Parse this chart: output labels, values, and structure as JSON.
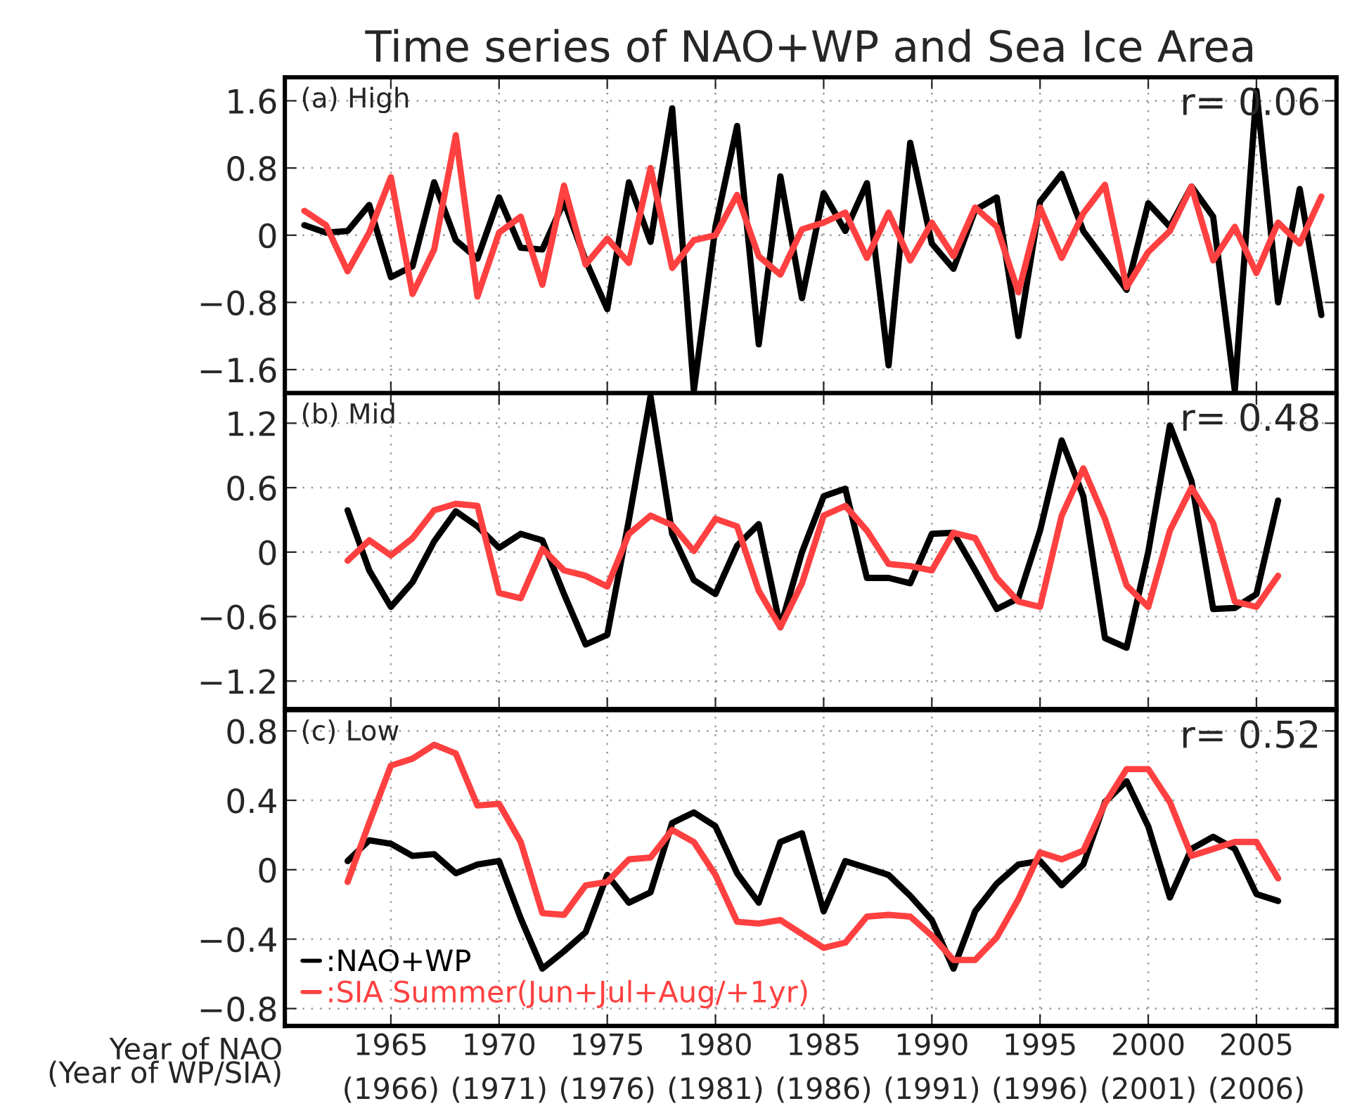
{
  "chart_data": [
    {
      "type": "line",
      "title": "Time series of NAO+WP and Sea Ice Area",
      "annotations": [
        "(a) High",
        "r= 0.06"
      ],
      "x": [
        1961,
        1962,
        1963,
        1964,
        1965,
        1966,
        1967,
        1968,
        1969,
        1970,
        1971,
        1972,
        1973,
        1974,
        1975,
        1976,
        1977,
        1978,
        1979,
        1980,
        1981,
        1982,
        1983,
        1984,
        1985,
        1986,
        1987,
        1988,
        1989,
        1990,
        1991,
        1992,
        1993,
        1994,
        1995,
        1996,
        1997,
        1998,
        1999,
        2000,
        2001,
        2002,
        2003,
        2004,
        2005,
        2006,
        2007,
        2008
      ],
      "series": [
        {
          "color": "#000000",
          "values": [
            0.12,
            0.03,
            0.05,
            0.36,
            -0.5,
            -0.37,
            0.63,
            -0.06,
            -0.28,
            0.45,
            -0.15,
            -0.17,
            0.4,
            -0.3,
            -0.88,
            0.63,
            -0.08,
            1.51,
            -1.85,
            0.1,
            1.3,
            -1.3,
            0.7,
            -0.75,
            0.5,
            0.05,
            0.62,
            -1.55,
            1.1,
            -0.1,
            -0.4,
            0.3,
            0.45,
            -1.2,
            0.4,
            0.73,
            0.05,
            -0.3,
            -0.65,
            0.38,
            0.1,
            0.58,
            0.22,
            -1.85,
            1.72,
            -0.8,
            0.55,
            -0.95
          ]
        },
        {
          "color": "#ff4040",
          "values": [
            0.29,
            0.12,
            -0.43,
            0.03,
            0.69,
            -0.7,
            -0.17,
            1.19,
            -0.73,
            0.03,
            0.22,
            -0.59,
            0.59,
            -0.35,
            -0.04,
            -0.33,
            0.8,
            -0.39,
            -0.06,
            0.0,
            0.48,
            -0.25,
            -0.47,
            0.07,
            0.15,
            0.27,
            -0.27,
            0.27,
            -0.3,
            0.15,
            -0.25,
            0.33,
            0.1,
            -0.68,
            0.33,
            -0.27,
            0.26,
            0.6,
            -0.62,
            -0.2,
            0.05,
            0.58,
            -0.3,
            0.1,
            -0.45,
            0.15,
            -0.1,
            0.46
          ]
        }
      ],
      "xlim": [
        1960.1,
        2008.7
      ],
      "xticks": [
        1965,
        1970,
        1975,
        1980,
        1985,
        1990,
        1995,
        2000,
        2005
      ],
      "ylim": [
        -1.88,
        1.88
      ],
      "yticks": [
        {
          "value": -1.6,
          "label": "−1.6"
        },
        {
          "value": -0.8,
          "label": "−0.8"
        },
        0,
        0.8,
        1.6
      ],
      "grid": true,
      "tick_labels": "y",
      "line_style": "solid"
    },
    {
      "type": "line",
      "annotations": [
        "(b) Mid",
        "r= 0.48"
      ],
      "x": [
        1963,
        1964,
        1965,
        1966,
        1967,
        1968,
        1969,
        1970,
        1971,
        1972,
        1973,
        1974,
        1975,
        1976,
        1977,
        1978,
        1979,
        1980,
        1981,
        1982,
        1983,
        1984,
        1985,
        1986,
        1987,
        1988,
        1989,
        1990,
        1991,
        1992,
        1993,
        1994,
        1995,
        1996,
        1997,
        1998,
        1999,
        2000,
        2001,
        2002,
        2003,
        2004,
        2005,
        2006
      ],
      "series": [
        {
          "color": "#000000",
          "values": [
            0.39,
            -0.17,
            -0.51,
            -0.28,
            0.1,
            0.38,
            0.24,
            0.04,
            0.17,
            0.11,
            -0.39,
            -0.86,
            -0.77,
            0.3,
            1.45,
            0.17,
            -0.26,
            -0.39,
            0.06,
            0.26,
            -0.7,
            0.0,
            0.52,
            0.59,
            -0.24,
            -0.24,
            -0.29,
            0.17,
            0.18,
            -0.17,
            -0.53,
            -0.43,
            0.2,
            1.04,
            0.52,
            -0.8,
            -0.89,
            0.0,
            1.18,
            0.66,
            -0.53,
            -0.52,
            -0.39,
            0.48
          ]
        },
        {
          "color": "#ff4040",
          "values": [
            -0.08,
            0.11,
            -0.03,
            0.13,
            0.39,
            0.45,
            0.43,
            -0.38,
            -0.43,
            0.03,
            -0.17,
            -0.22,
            -0.32,
            0.17,
            0.34,
            0.25,
            0.01,
            0.31,
            0.24,
            -0.36,
            -0.7,
            -0.29,
            0.34,
            0.43,
            0.2,
            -0.11,
            -0.13,
            -0.17,
            0.18,
            0.13,
            -0.24,
            -0.46,
            -0.51,
            0.34,
            0.78,
            0.31,
            -0.31,
            -0.51,
            0.2,
            0.6,
            0.27,
            -0.46,
            -0.51,
            -0.22
          ]
        }
      ],
      "xlim": [
        1960.1,
        2008.7
      ],
      "xticks": [
        1965,
        1970,
        1975,
        1980,
        1985,
        1990,
        1995,
        2000,
        2005
      ],
      "ylim": [
        -1.46,
        1.48
      ],
      "yticks": [
        {
          "value": -1.2,
          "label": "−1.2"
        },
        {
          "value": -0.6,
          "label": "−0.6"
        },
        0,
        0.6,
        1.2
      ],
      "grid": true,
      "tick_labels": "y",
      "line_style": "solid"
    },
    {
      "type": "line",
      "annotations": [
        "(c) Low",
        "r= 0.52"
      ],
      "xlabel": "Year of NAO",
      "x2label": "(Year of WP/SIA)",
      "x2lim": [
        1961.1,
        2009.7
      ],
      "x2ticks": [
        {
          "value": 1966,
          "label": "(1966)"
        },
        {
          "value": 1971,
          "label": "(1971)"
        },
        {
          "value": 1976,
          "label": "(1976)"
        },
        {
          "value": 1981,
          "label": "(1981)"
        },
        {
          "value": 1986,
          "label": "(1986)"
        },
        {
          "value": 1991,
          "label": "(1991)"
        },
        {
          "value": 1996,
          "label": "(1996)"
        },
        {
          "value": 2001,
          "label": "(2001)"
        },
        {
          "value": 2006,
          "label": "(2006)"
        }
      ],
      "x": [
        1963,
        1964,
        1965,
        1966,
        1967,
        1968,
        1969,
        1970,
        1971,
        1972,
        1973,
        1974,
        1975,
        1976,
        1977,
        1978,
        1979,
        1980,
        1981,
        1982,
        1983,
        1984,
        1985,
        1986,
        1987,
        1988,
        1989,
        1990,
        1991,
        1992,
        1993,
        1994,
        1995,
        1996,
        1997,
        1998,
        1999,
        2000,
        2001,
        2002,
        2003,
        2004,
        2005,
        2006
      ],
      "series": [
        {
          "name": ":NAO+WP",
          "color": "#000000",
          "values": [
            0.05,
            0.17,
            0.15,
            0.08,
            0.09,
            -0.02,
            0.03,
            0.05,
            -0.28,
            -0.57,
            -0.47,
            -0.36,
            -0.03,
            -0.19,
            -0.13,
            0.27,
            0.33,
            0.25,
            -0.02,
            -0.19,
            0.16,
            0.21,
            -0.24,
            0.05,
            0.01,
            -0.03,
            -0.15,
            -0.29,
            -0.57,
            -0.24,
            -0.08,
            0.03,
            0.05,
            -0.09,
            0.03,
            0.39,
            0.51,
            0.25,
            -0.16,
            0.12,
            0.19,
            0.12,
            -0.14,
            -0.18
          ]
        },
        {
          "name": ":SIA Summer(Jun+Jul+Aug/+1yr)",
          "color": "#ff4040",
          "values": [
            -0.07,
            0.27,
            0.6,
            0.64,
            0.72,
            0.67,
            0.37,
            0.38,
            0.16,
            -0.25,
            -0.26,
            -0.09,
            -0.07,
            0.06,
            0.07,
            0.23,
            0.16,
            -0.03,
            -0.3,
            -0.31,
            -0.29,
            -0.37,
            -0.45,
            -0.42,
            -0.27,
            -0.26,
            -0.27,
            -0.38,
            -0.52,
            -0.52,
            -0.39,
            -0.17,
            0.1,
            0.06,
            0.11,
            0.38,
            0.58,
            0.58,
            0.39,
            0.08,
            0.12,
            0.16,
            0.16,
            -0.05
          ]
        }
      ],
      "xlim": [
        1960.1,
        2008.7
      ],
      "xticks": [
        1965,
        1970,
        1975,
        1980,
        1985,
        1990,
        1995,
        2000,
        2005
      ],
      "ylim": [
        -0.9,
        0.92
      ],
      "yticks": [
        {
          "value": -0.8,
          "label": "−0.8"
        },
        {
          "value": -0.4,
          "label": "−0.4"
        },
        0,
        0.4,
        0.8
      ],
      "grid": true,
      "legend": "bottom left",
      "line_style": "solid"
    }
  ]
}
